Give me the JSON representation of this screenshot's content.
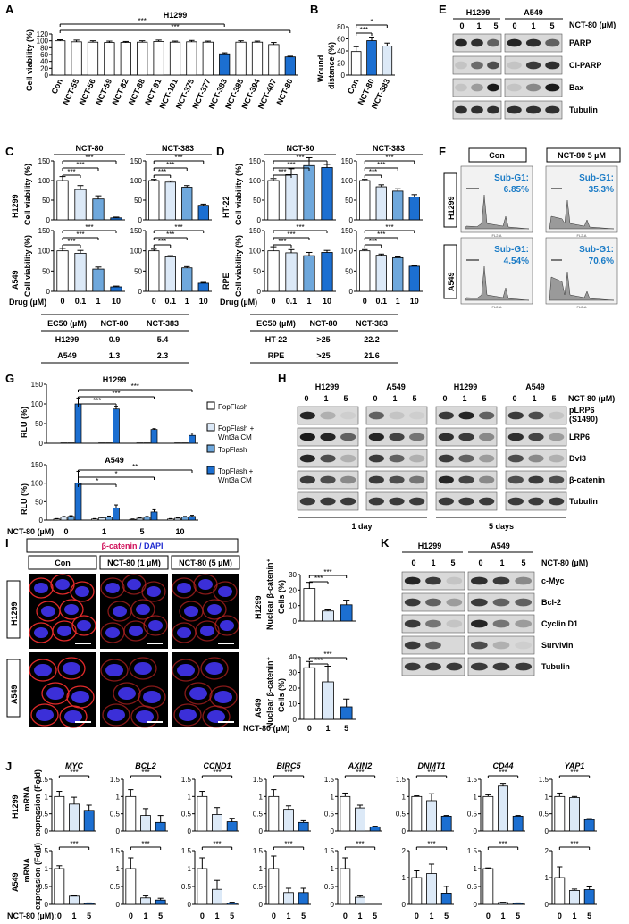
{
  "figure_text": {
    "panel_letters": [
      "A",
      "B",
      "C",
      "D",
      "E",
      "F",
      "G",
      "H",
      "I",
      "J",
      "K"
    ],
    "panelA_title": "H1299",
    "panelA_ylabel": "Cell viability (%)",
    "panelB_ylabel": "Wound distance (%)",
    "viability_ylabel": "Cell viability (%)",
    "rlu": "RLU (%)",
    "drug_label": "Drug (µM)",
    "nct80_um": "NCT-80 (µM)",
    "nct80_um_colon": "NCT-80 (µM):",
    "h1299": "H1299",
    "a549": "A549",
    "ht22": "HT-22",
    "rpe": "RPE",
    "nct80": "NCT-80",
    "nct383": "NCT-383",
    "con": "Con",
    "nct80_5um": "NCT-80 5 µM",
    "nct80_1um_i": "NCT-80 (1 µM)",
    "nct80_5um_i": "NCT-80 (5 µM)",
    "beta_catenin": "β-catenin",
    "slash_dapi": " / DAPI",
    "nuclear_bc": "Nuclear β-catenin⁺",
    "cells_pct": "Cells (%)",
    "mrna": "mRNA",
    "expression": "expression (Fold)",
    "day1": "1 day",
    "day5": "5 days",
    "stars3": "***",
    "stars2": "**",
    "star1": "*"
  },
  "panelE_labels": [
    "PARP",
    "Cl-PARP",
    "Bax",
    "Tubulin"
  ],
  "panelH_labels": [
    "pLRP6",
    "(S1490)",
    "LRP6",
    "Dvl3",
    "β-catenin",
    "Tubulin"
  ],
  "panelK_labels": [
    "c-Myc",
    "Bcl-2",
    "Cyclin D1",
    "Survivin",
    "Tubulin"
  ],
  "doses_blot": [
    "0",
    "1",
    "5"
  ],
  "ec50_tables": [
    {
      "header": [
        "EC50 (µM)",
        "NCT-80",
        "NCT-383"
      ],
      "rows": [
        [
          "H1299",
          "0.9",
          "5.4"
        ],
        [
          "A549",
          "1.3",
          "2.3"
        ]
      ]
    },
    {
      "header": [
        "EC50 (µM)",
        "NCT-80",
        "NCT-383"
      ],
      "rows": [
        [
          "HT-22",
          ">25",
          "22.2"
        ],
        [
          "RPE",
          ">25",
          "21.6"
        ]
      ]
    }
  ],
  "flow_cytometry": {
    "sub_g1_label": "Sub-G1:",
    "values": [
      [
        "6.85%",
        "35.3%"
      ],
      [
        "4.54%",
        "70.6%"
      ]
    ],
    "axis_tag": "FL2-A"
  },
  "legend_G": [
    {
      "label": "FopFlash",
      "color": "#ffffff"
    },
    {
      "label": "FopFlash +",
      "label2": "Wnt3a CM",
      "color": "#dce9f7"
    },
    {
      "label": "TopFlash",
      "color": "#6fa8dc"
    },
    {
      "label": "TopFlash +",
      "label2": "Wnt3a CM",
      "color": "#1c6fd1"
    }
  ],
  "colors": {
    "white": "#ffffff",
    "light": "#dce9f7",
    "mid": "#6fa8dc",
    "dark": "#1c6fd1"
  },
  "chart_data": [
    {
      "id": "A",
      "type": "bar",
      "title": "H1299",
      "ylabel": "Cell viability (%)",
      "ylim": [
        0,
        120
      ],
      "yticks": [
        0,
        20,
        40,
        60,
        80,
        100,
        120
      ],
      "categories": [
        "Con",
        "NCT-55",
        "NCT-56",
        "NCT-59",
        "NCT-82",
        "NCT-88",
        "NCT-91",
        "NCT-101",
        "NCT-375",
        "NCT-377",
        "NCT-383",
        "NCT-385",
        "NCT-394",
        "NCT-407",
        "NCT-80"
      ],
      "values": [
        100,
        97,
        96,
        95,
        95,
        96,
        98,
        96,
        97,
        96,
        62,
        96,
        96,
        89,
        53
      ],
      "errors": [
        3,
        5,
        4,
        4,
        3,
        4,
        4,
        3,
        4,
        3,
        3,
        4,
        3,
        6,
        2
      ],
      "highlight": [
        10,
        14
      ]
    },
    {
      "id": "B",
      "type": "bar",
      "ylabel": "Wound distance (%)",
      "ylim": [
        0,
        80
      ],
      "yticks": [
        0,
        20,
        40,
        60,
        80
      ],
      "categories": [
        "Con",
        "NCT-80",
        "NCT-383"
      ],
      "values": [
        39,
        57,
        48
      ],
      "errors": [
        8,
        6,
        5
      ]
    },
    {
      "id": "C",
      "type": "bar",
      "groups": [
        {
          "label": "NCT-80",
          "row": "H1299",
          "values": [
            100,
            77,
            53,
            5
          ],
          "errors": [
            10,
            10,
            8,
            2
          ]
        },
        {
          "label": "NCT-383",
          "row": "H1299",
          "values": [
            100,
            96,
            83,
            37
          ],
          "errors": [
            3,
            3,
            4,
            3
          ]
        },
        {
          "label": "NCT-80",
          "row": "A549",
          "values": [
            100,
            94,
            55,
            11
          ],
          "errors": [
            6,
            7,
            5,
            2
          ]
        },
        {
          "label": "NCT-383",
          "row": "A549",
          "values": [
            100,
            85,
            58,
            20
          ],
          "errors": [
            4,
            3,
            3,
            2
          ]
        }
      ],
      "categories": [
        "0",
        "0.1",
        "1",
        "10"
      ],
      "ylim": [
        0,
        150
      ],
      "yticks": [
        0,
        50,
        100,
        150
      ]
    },
    {
      "id": "D",
      "type": "bar",
      "groups": [
        {
          "label": "NCT-80",
          "row": "HT-22",
          "values": [
            100,
            115,
            138,
            133
          ],
          "errors": [
            5,
            15,
            20,
            8
          ]
        },
        {
          "label": "NCT-383",
          "row": "HT-22",
          "values": [
            100,
            84,
            73,
            58
          ],
          "errors": [
            3,
            5,
            6,
            6
          ]
        },
        {
          "label": "NCT-80",
          "row": "RPE",
          "values": [
            100,
            95,
            88,
            96
          ],
          "errors": [
            10,
            8,
            8,
            5
          ]
        },
        {
          "label": "NCT-383",
          "row": "RPE",
          "values": [
            100,
            89,
            83,
            62
          ],
          "errors": [
            3,
            3,
            2,
            2
          ]
        }
      ],
      "categories": [
        "0",
        "0.1",
        "1",
        "10"
      ],
      "ylim": [
        0,
        150
      ],
      "yticks": [
        0,
        50,
        100,
        150
      ]
    },
    {
      "id": "G",
      "type": "bar",
      "series": [
        "FopFlash",
        "FopFlash + Wnt3a CM",
        "TopFlash",
        "TopFlash + Wnt3a CM"
      ],
      "categories": [
        "0",
        "1",
        "5",
        "10"
      ],
      "ylim": [
        0,
        150
      ],
      "yticks": [
        0,
        50,
        100,
        150
      ],
      "H1299": [
        [
          0,
          1,
          1,
          100
        ],
        [
          0,
          1,
          1,
          87
        ],
        [
          0,
          1,
          1,
          35
        ],
        [
          0,
          1,
          1,
          20
        ]
      ],
      "H1299_err": [
        [
          0,
          0,
          0,
          15
        ],
        [
          0,
          0,
          0,
          7
        ],
        [
          0,
          0,
          0,
          2
        ],
        [
          0,
          0,
          0,
          6
        ]
      ],
      "A549": [
        [
          3,
          8,
          10,
          100
        ],
        [
          3,
          6,
          8,
          33
        ],
        [
          2,
          5,
          8,
          22
        ],
        [
          3,
          5,
          8,
          10
        ]
      ],
      "A549_err": [
        [
          1,
          2,
          2,
          32
        ],
        [
          1,
          2,
          3,
          8
        ],
        [
          1,
          1,
          2,
          6
        ],
        [
          1,
          1,
          2,
          3
        ]
      ]
    },
    {
      "id": "I",
      "type": "bar",
      "categories": [
        "0",
        "1",
        "5"
      ],
      "H1299": {
        "values": [
          21,
          6.5,
          10.5
        ],
        "errors": [
          4,
          0.7,
          3
        ],
        "ylim": [
          0,
          30
        ],
        "yticks": [
          0,
          10,
          20,
          30
        ]
      },
      "A549": {
        "values": [
          33,
          24,
          8
        ],
        "errors": [
          4,
          10,
          5
        ],
        "ylim": [
          0,
          40
        ],
        "yticks": [
          0,
          10,
          20,
          30,
          40
        ]
      }
    },
    {
      "id": "J",
      "type": "bar",
      "categories": [
        "0",
        "1",
        "5"
      ],
      "genes": [
        "MYC",
        "BCL2",
        "CCND1",
        "BIRC5",
        "AXIN2",
        "DNMT1",
        "CD44",
        "YAP1"
      ],
      "H1299": [
        [
          1,
          0.78,
          0.6
        ],
        [
          1,
          0.45,
          0.25
        ],
        [
          1,
          0.48,
          0.27
        ],
        [
          1,
          0.63,
          0.25
        ],
        [
          1,
          0.67,
          0.12
        ],
        [
          1,
          0.88,
          0.43
        ],
        [
          1,
          1.3,
          0.43
        ],
        [
          1,
          0.97,
          0.33
        ]
      ],
      "H1299_err": [
        [
          0.15,
          0.2,
          0.15
        ],
        [
          0.2,
          0.2,
          0.2
        ],
        [
          0.15,
          0.2,
          0.1
        ],
        [
          0.2,
          0.1,
          0.05
        ],
        [
          0.1,
          0.08,
          0.02
        ],
        [
          0.02,
          0.2,
          0.02
        ],
        [
          0.05,
          0.08,
          0.02
        ],
        [
          0.1,
          0.03,
          0.03
        ]
      ],
      "H1299_ylim": [
        [
          0,
          1.5
        ],
        [
          0,
          1.5
        ],
        [
          0,
          1.5
        ],
        [
          0,
          1.5
        ],
        [
          0,
          1.5
        ],
        [
          0,
          1.5
        ],
        [
          0,
          1.5
        ],
        [
          0,
          1.5
        ]
      ],
      "A549": [
        [
          1,
          0.23,
          0.03
        ],
        [
          1,
          0.18,
          0.12
        ],
        [
          1,
          0.42,
          0.04
        ],
        [
          1,
          0.33,
          0.33
        ],
        [
          1,
          0.2,
          0
        ],
        [
          1,
          1.15,
          0.42
        ],
        [
          1,
          0.05,
          0.03
        ],
        [
          1,
          0.52,
          0.55
        ]
      ],
      "A549_err": [
        [
          0.08,
          0.02,
          0.01
        ],
        [
          0.3,
          0.06,
          0.05
        ],
        [
          0.3,
          0.25,
          0.02
        ],
        [
          0.35,
          0.12,
          0.12
        ],
        [
          0.3,
          0.04,
          0
        ],
        [
          0.25,
          0.35,
          0.25
        ],
        [
          0.02,
          0.01,
          0.01
        ],
        [
          0.4,
          0.05,
          0.1
        ]
      ],
      "A549_ylim": [
        [
          0,
          1.5
        ],
        [
          0,
          1.5
        ],
        [
          0,
          1.5
        ],
        [
          0,
          1.5
        ],
        [
          0,
          1.5
        ],
        [
          0,
          2
        ],
        [
          0,
          1.5
        ],
        [
          0,
          2
        ]
      ]
    }
  ]
}
